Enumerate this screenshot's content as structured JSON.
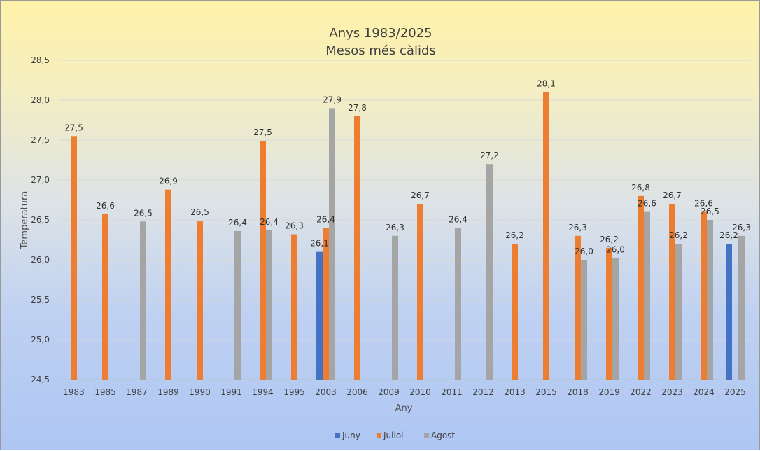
{
  "chart_data": {
    "type": "bar",
    "title": "Anys 1983/2025",
    "subtitle": "Mesos més càlids",
    "xlabel": "Any",
    "ylabel": "Temperatura",
    "ylim": [
      24.5,
      28.5
    ],
    "yticks": [
      "24,5",
      "25,0",
      "25,5",
      "26,0",
      "26,5",
      "27,0",
      "27,5",
      "28,0",
      "28,5"
    ],
    "grid": true,
    "legend_position": "bottom",
    "categories": [
      "1983",
      "1985",
      "1987",
      "1989",
      "1990",
      "1991",
      "1994",
      "1995",
      "2003",
      "2006",
      "2009",
      "2010",
      "2011",
      "2012",
      "2013",
      "2015",
      "2018",
      "2019",
      "2022",
      "2023",
      "2024",
      "2025"
    ],
    "series": [
      {
        "name": "Juny",
        "color": "#4472c4",
        "values": [
          null,
          null,
          null,
          null,
          null,
          null,
          null,
          null,
          26.1,
          null,
          null,
          null,
          null,
          null,
          null,
          null,
          null,
          null,
          null,
          null,
          null,
          26.2
        ],
        "labels": [
          null,
          null,
          null,
          null,
          null,
          null,
          null,
          null,
          "26,1",
          null,
          null,
          null,
          null,
          null,
          null,
          null,
          null,
          null,
          null,
          null,
          null,
          "26,2"
        ]
      },
      {
        "name": "Juliol",
        "color": "#ed7d31",
        "values": [
          27.55,
          26.57,
          null,
          26.88,
          26.49,
          null,
          27.49,
          26.32,
          26.4,
          27.8,
          null,
          26.7,
          null,
          null,
          26.2,
          28.1,
          26.3,
          26.15,
          26.8,
          26.7,
          26.6,
          null
        ],
        "labels": [
          "27,5",
          "26,6",
          null,
          "26,9",
          "26,5",
          null,
          "27,5",
          "26,3",
          "26,4",
          "27,8",
          null,
          "26,7",
          null,
          null,
          "26,2",
          "28,1",
          "26,3",
          "26,2",
          "26,8",
          "26,7",
          "26,6",
          null
        ]
      },
      {
        "name": "Agost",
        "color": "#a5a5a5",
        "values": [
          null,
          null,
          26.48,
          null,
          null,
          26.36,
          26.37,
          null,
          27.9,
          null,
          26.3,
          null,
          26.4,
          27.2,
          null,
          null,
          26.0,
          26.02,
          26.6,
          26.2,
          26.5,
          26.3
        ],
        "labels": [
          null,
          null,
          "26,5",
          null,
          null,
          "26,4",
          "26,4",
          null,
          "27,9",
          null,
          "26,3",
          null,
          "26,4",
          "27,2",
          null,
          null,
          "26,0",
          "26,0",
          "26,6",
          "26,2",
          "26,5",
          "26,3"
        ]
      }
    ]
  }
}
